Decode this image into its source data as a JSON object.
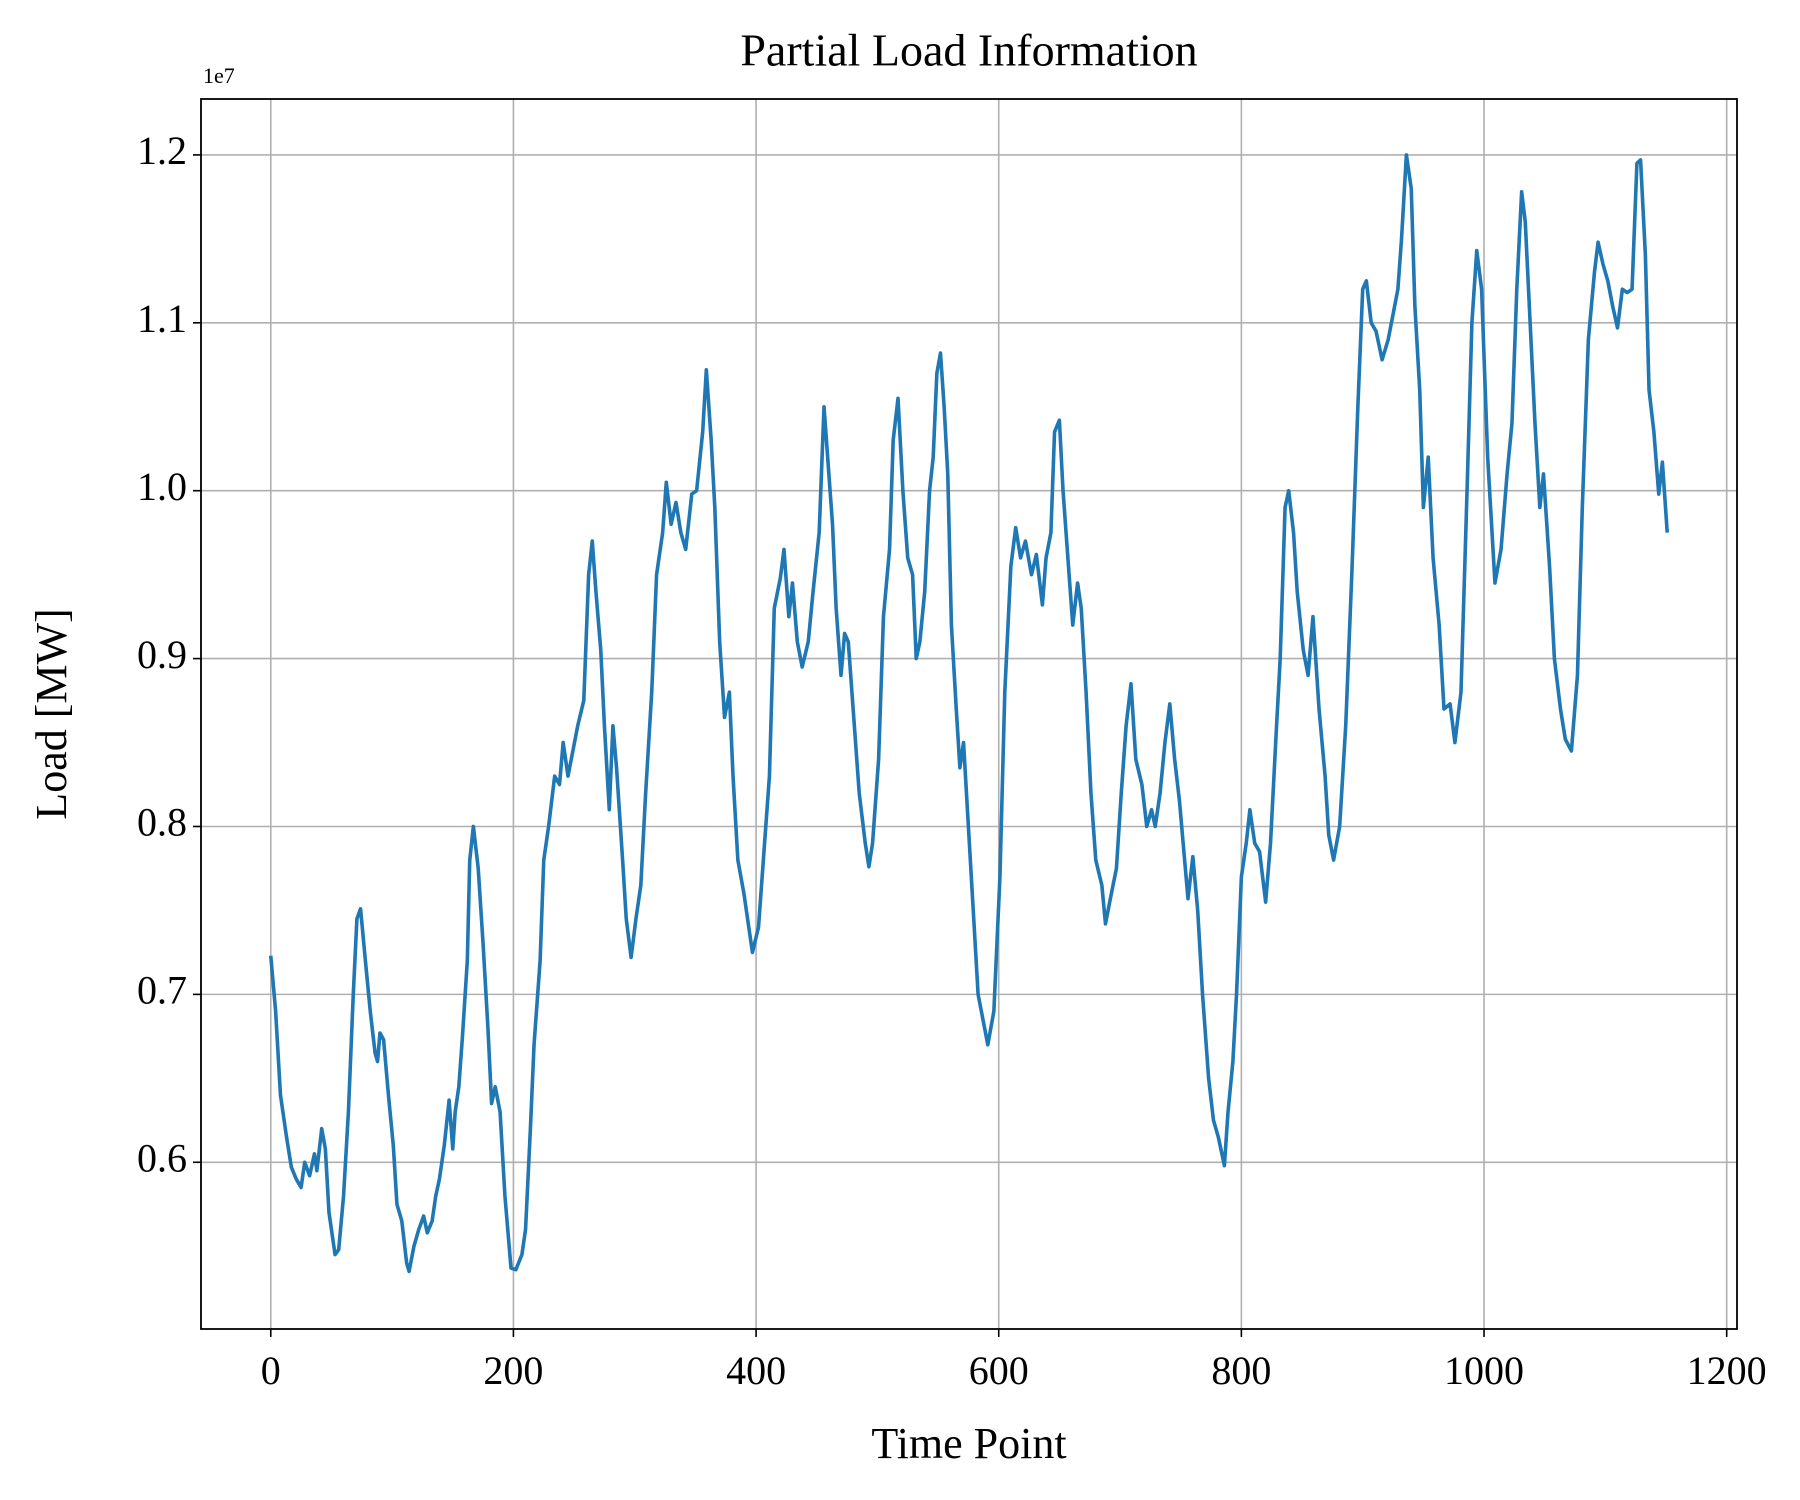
{
  "chart_data": {
    "type": "line",
    "title": "Partial Load Information",
    "xlabel": "Time Point",
    "ylabel": "Load [MW]",
    "y_offset_label": "1e7",
    "color": "#1f77b4",
    "grid": true,
    "xlim": [
      -57.5,
      1208.5
    ],
    "xticks": [
      0,
      200,
      400,
      600,
      800,
      1000,
      1200
    ],
    "ylim": [
      0.5007,
      1.2333
    ],
    "yticks": [
      0.6,
      0.7,
      0.8,
      0.9,
      {
        "value": 1,
        "label": "1.0"
      },
      1.1,
      1.2
    ],
    "x": [
      0,
      4,
      8,
      13,
      17,
      21,
      25,
      28,
      32,
      36,
      38,
      42,
      45,
      48,
      53,
      56,
      60,
      64,
      68,
      71,
      74,
      78,
      82,
      86,
      88,
      90,
      93,
      97,
      101,
      104,
      108,
      112,
      114,
      118,
      122,
      126,
      129,
      133,
      136,
      139,
      143,
      147,
      150,
      152,
      155,
      158,
      162,
      164,
      167,
      171,
      175,
      179,
      182,
      185,
      189,
      193,
      198,
      202,
      207,
      210,
      214,
      217,
      222,
      225,
      229,
      234,
      238,
      241,
      245,
      249,
      253,
      258,
      262,
      265,
      268,
      272,
      275,
      279,
      282,
      285,
      290,
      293,
      297,
      301,
      305,
      309,
      314,
      318,
      323,
      326,
      330,
      334,
      338,
      342,
      347,
      351,
      356,
      359,
      363,
      366,
      370,
      374,
      378,
      381,
      385,
      390,
      394,
      397,
      402,
      406,
      411,
      415,
      420,
      423,
      427,
      430,
      434,
      438,
      443,
      447,
      452,
      456,
      459,
      463,
      466,
      470,
      473,
      476,
      481,
      485,
      490,
      493,
      496,
      501,
      505,
      510,
      513,
      517,
      521,
      525,
      529,
      532,
      535,
      539,
      543,
      546,
      549,
      552,
      555,
      558,
      561,
      565,
      568,
      571,
      575,
      579,
      583,
      587,
      591,
      596,
      601,
      605,
      610,
      614,
      618,
      622,
      627,
      631,
      636,
      639,
      643,
      646,
      650,
      653,
      658,
      661,
      665,
      668,
      672,
      676,
      680,
      685,
      688,
      692,
      697,
      701,
      705,
      709,
      713,
      718,
      722,
      726,
      729,
      733,
      737,
      741,
      745,
      749,
      752,
      756,
      760,
      764,
      768,
      773,
      777,
      781,
      786,
      789,
      793,
      796,
      800,
      804,
      807,
      811,
      815,
      820,
      824,
      829,
      832,
      836,
      839,
      843,
      846,
      851,
      855,
      859,
      864,
      869,
      872,
      876,
      881,
      886,
      891,
      896,
      900,
      903,
      907,
      911,
      916,
      921,
      925,
      929,
      932,
      936,
      940,
      943,
      947,
      950,
      954,
      958,
      963,
      967,
      972,
      976,
      981,
      986,
      990,
      994,
      998,
      1003,
      1009,
      1014,
      1019,
      1023,
      1027,
      1031,
      1034,
      1038,
      1042,
      1046,
      1049,
      1054,
      1058,
      1063,
      1067,
      1072,
      1077,
      1081,
      1086,
      1091,
      1094,
      1098,
      1102,
      1106,
      1110,
      1114,
      1118,
      1122,
      1126,
      1129,
      1133,
      1136,
      1140,
      1144,
      1147,
      1151
    ],
    "values": [
      0.723,
      0.69,
      0.64,
      0.615,
      0.597,
      0.59,
      0.585,
      0.6,
      0.592,
      0.605,
      0.595,
      0.62,
      0.608,
      0.57,
      0.545,
      0.548,
      0.58,
      0.63,
      0.7,
      0.745,
      0.751,
      0.72,
      0.69,
      0.665,
      0.66,
      0.677,
      0.673,
      0.64,
      0.61,
      0.575,
      0.565,
      0.54,
      0.535,
      0.55,
      0.56,
      0.568,
      0.558,
      0.565,
      0.58,
      0.59,
      0.61,
      0.637,
      0.608,
      0.63,
      0.645,
      0.675,
      0.72,
      0.78,
      0.8,
      0.775,
      0.73,
      0.68,
      0.635,
      0.645,
      0.63,
      0.58,
      0.537,
      0.536,
      0.545,
      0.56,
      0.62,
      0.67,
      0.72,
      0.78,
      0.8,
      0.83,
      0.825,
      0.85,
      0.83,
      0.845,
      0.86,
      0.875,
      0.95,
      0.97,
      0.94,
      0.905,
      0.86,
      0.81,
      0.86,
      0.835,
      0.78,
      0.745,
      0.722,
      0.745,
      0.765,
      0.82,
      0.88,
      0.95,
      0.975,
      1.005,
      0.98,
      0.993,
      0.975,
      0.965,
      0.998,
      1.0,
      1.035,
      1.072,
      1.03,
      0.99,
      0.91,
      0.865,
      0.88,
      0.83,
      0.78,
      0.76,
      0.74,
      0.725,
      0.74,
      0.78,
      0.83,
      0.93,
      0.948,
      0.965,
      0.925,
      0.945,
      0.91,
      0.895,
      0.91,
      0.94,
      0.975,
      1.05,
      1.02,
      0.98,
      0.93,
      0.89,
      0.915,
      0.91,
      0.86,
      0.82,
      0.79,
      0.776,
      0.79,
      0.84,
      0.925,
      0.965,
      1.03,
      1.055,
      1.0,
      0.96,
      0.95,
      0.9,
      0.91,
      0.94,
      1.0,
      1.02,
      1.07,
      1.082,
      1.05,
      1.01,
      0.92,
      0.87,
      0.835,
      0.85,
      0.8,
      0.75,
      0.7,
      0.685,
      0.67,
      0.69,
      0.77,
      0.88,
      0.955,
      0.978,
      0.96,
      0.97,
      0.95,
      0.962,
      0.932,
      0.96,
      0.975,
      1.035,
      1.042,
      1.0,
      0.95,
      0.92,
      0.945,
      0.93,
      0.88,
      0.82,
      0.78,
      0.765,
      0.742,
      0.757,
      0.775,
      0.82,
      0.86,
      0.885,
      0.84,
      0.825,
      0.8,
      0.81,
      0.8,
      0.82,
      0.85,
      0.873,
      0.84,
      0.815,
      0.79,
      0.757,
      0.782,
      0.75,
      0.7,
      0.65,
      0.625,
      0.615,
      0.598,
      0.63,
      0.66,
      0.7,
      0.77,
      0.79,
      0.81,
      0.79,
      0.785,
      0.755,
      0.79,
      0.86,
      0.9,
      0.99,
      1.0,
      0.975,
      0.94,
      0.905,
      0.89,
      0.925,
      0.87,
      0.83,
      0.795,
      0.78,
      0.8,
      0.86,
      0.95,
      1.05,
      1.12,
      1.125,
      1.1,
      1.095,
      1.078,
      1.09,
      1.105,
      1.12,
      1.15,
      1.2,
      1.18,
      1.11,
      1.06,
      0.99,
      1.02,
      0.96,
      0.92,
      0.87,
      0.873,
      0.85,
      0.88,
      1.0,
      1.1,
      1.143,
      1.12,
      1.02,
      0.945,
      0.965,
      1.01,
      1.04,
      1.12,
      1.178,
      1.16,
      1.1,
      1.04,
      0.99,
      1.01,
      0.955,
      0.9,
      0.87,
      0.852,
      0.845,
      0.89,
      0.99,
      1.09,
      1.13,
      1.148,
      1.135,
      1.125,
      1.11,
      1.097,
      1.12,
      1.118,
      1.12,
      1.195,
      1.197,
      1.14,
      1.06,
      1.035,
      0.998,
      1.017,
      0.975
    ]
  }
}
